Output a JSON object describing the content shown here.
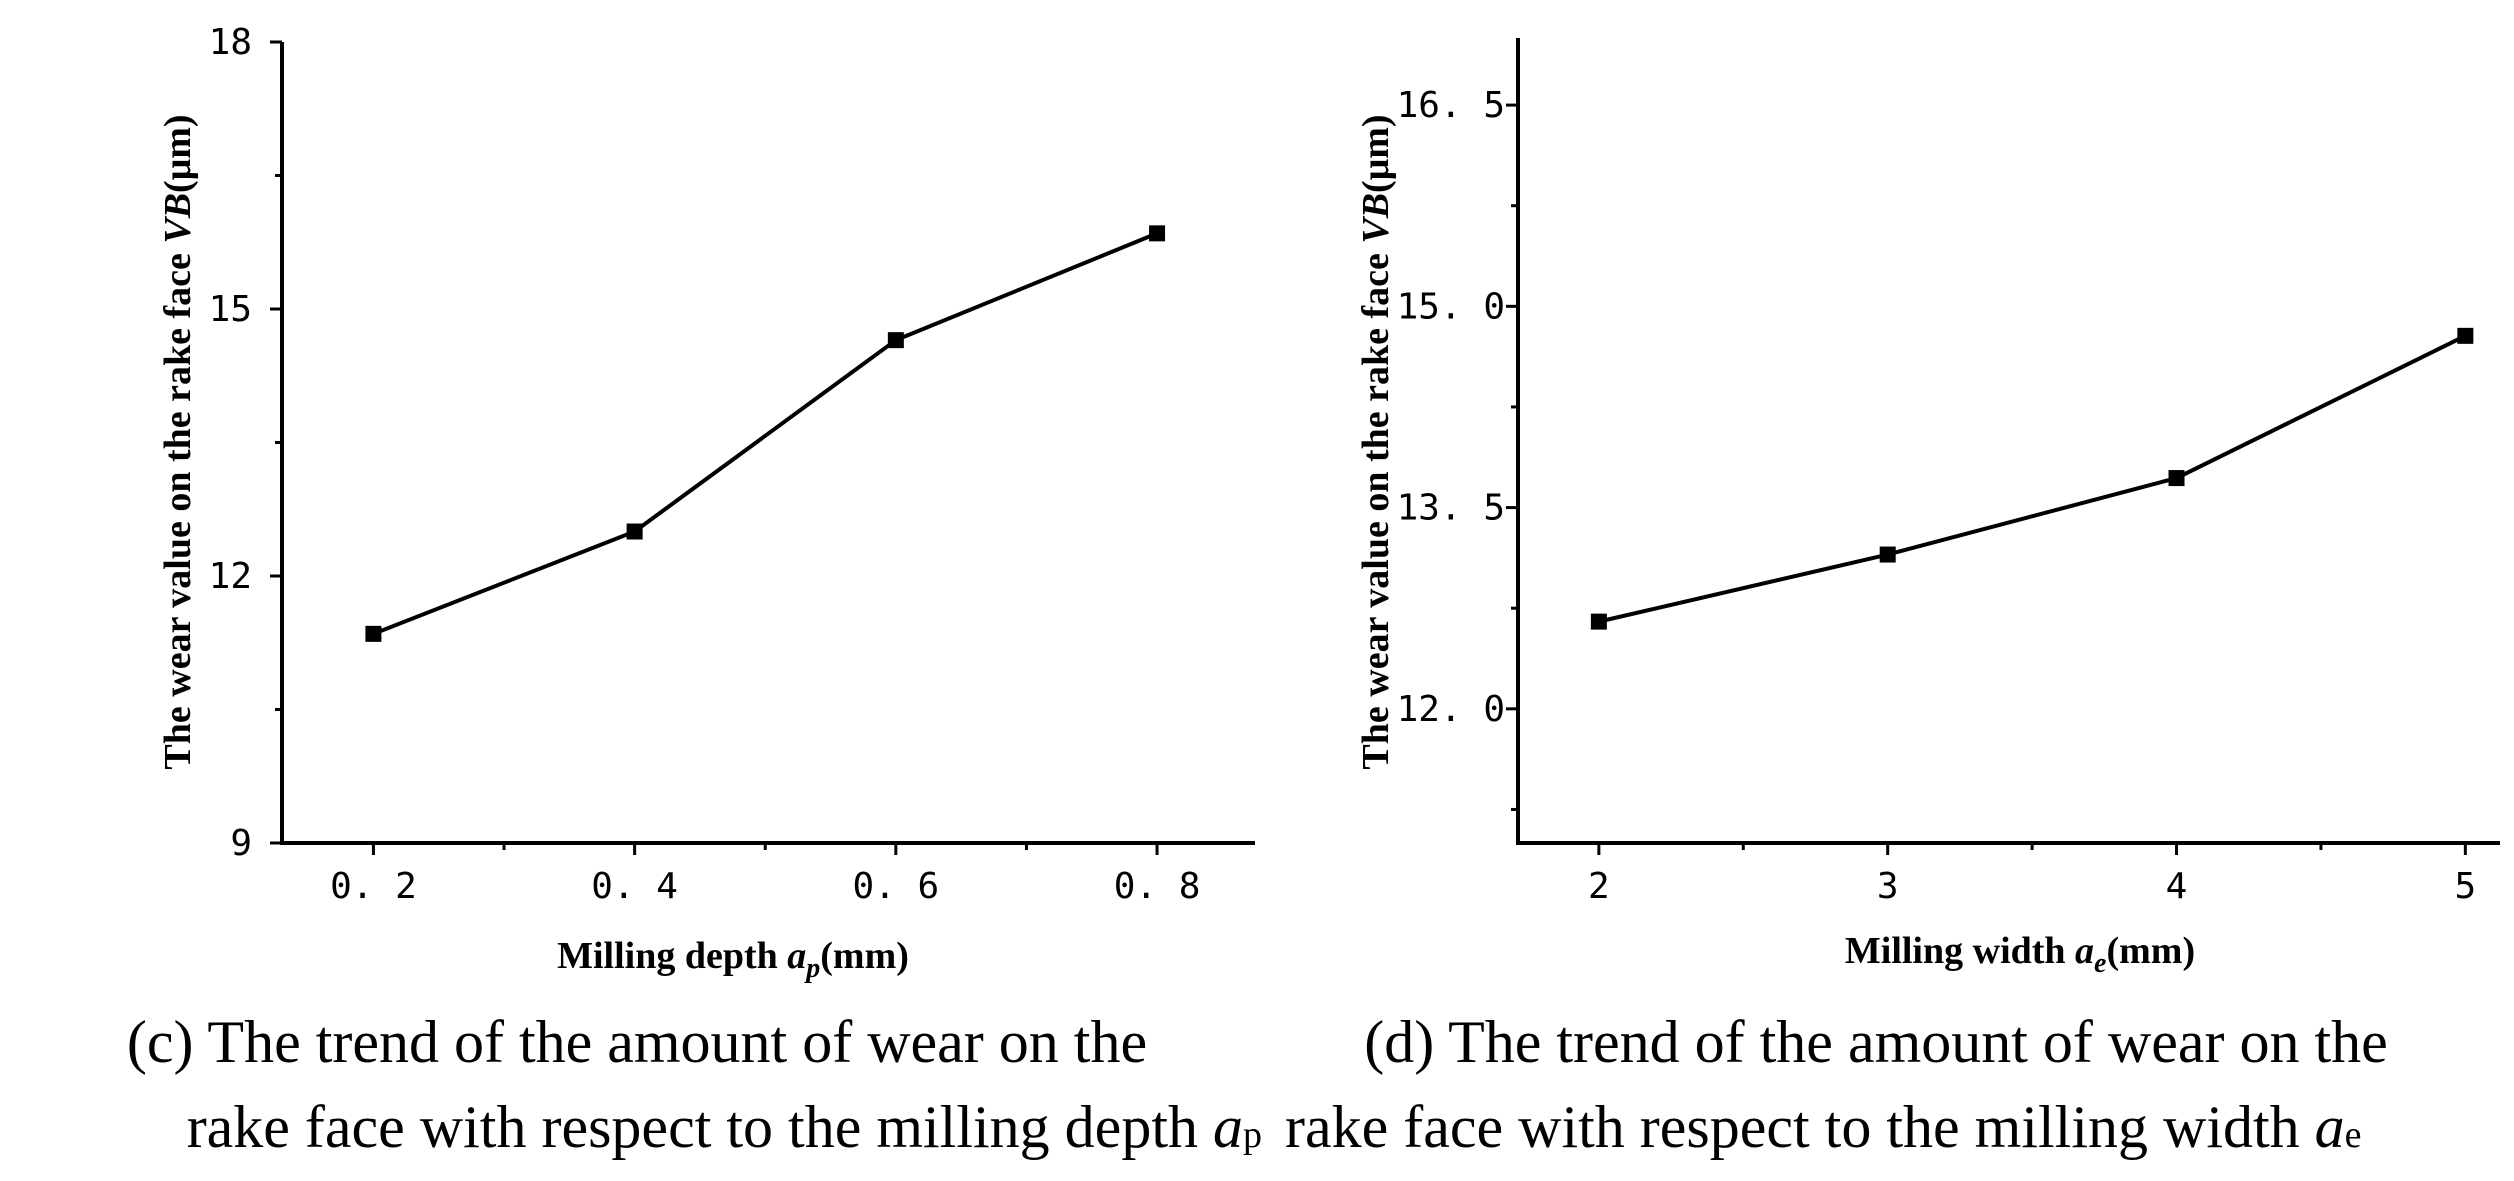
{
  "chart_data": [
    {
      "type": "line",
      "x": [
        0.2,
        0.4,
        0.6,
        0.8
      ],
      "x_tick_labels": [
        "0. 2",
        "0. 4",
        "0. 6",
        "0. 8"
      ],
      "y": [
        11.35,
        12.5,
        14.65,
        15.85
      ],
      "ylim": [
        9,
        18
      ],
      "y_ticks": [
        9,
        12,
        15,
        18
      ],
      "y_tick_labels": [
        "9",
        "12",
        "15",
        "18"
      ],
      "xlabel": {
        "pre": "Milling depth ",
        "var": "a",
        "sub": "p",
        "post": "(mm)"
      },
      "ylabel": {
        "pre": "The wear value on the rake face ",
        "var": "VB",
        "post": "(μm)"
      },
      "marker": "square",
      "color": "#000000",
      "caption": {
        "line1": "(c) The trend of the amount of wear on the",
        "line2": "rake face with respect to the milling depth ",
        "var": "a",
        "sub": "p"
      }
    },
    {
      "type": "line",
      "x": [
        2,
        3,
        4,
        5
      ],
      "x_tick_labels": [
        "2",
        "3",
        "4",
        "5"
      ],
      "y": [
        12.65,
        13.15,
        13.72,
        14.78
      ],
      "ylim": [
        11.0,
        17.0
      ],
      "y_ticks": [
        12.0,
        13.5,
        15.0,
        16.5
      ],
      "y_tick_labels": [
        "12. 0",
        "13. 5",
        "15. 0",
        "16. 5"
      ],
      "xlabel": {
        "pre": "Milling width ",
        "var": "a",
        "sub": "e",
        "post": "(mm)"
      },
      "ylabel": {
        "pre": "The wear value on the rake face ",
        "var": "VB",
        "post": "(μm)"
      },
      "marker": "square",
      "color": "#000000",
      "caption": {
        "line1": "(d) The trend of the amount of wear on the",
        "line2": "rake face with respect to the milling width ",
        "var": "a",
        "sub": "e"
      }
    }
  ]
}
